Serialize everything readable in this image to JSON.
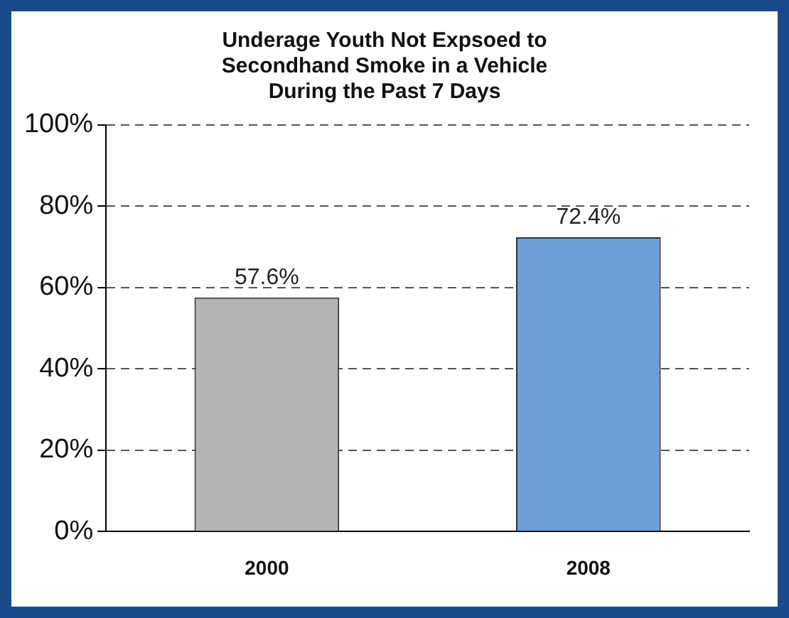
{
  "chart_data": {
    "type": "bar",
    "title": "Underage Youth Not Expsoed to Secondhand Smoke in a Vehicle During the Past 7 Days",
    "categories": [
      "2000",
      "2008"
    ],
    "values": [
      57.6,
      72.4
    ],
    "colors": [
      "#b4b4b4",
      "#6c9fd6"
    ],
    "value_labels": [
      "57.6%",
      "72.4%"
    ],
    "ylim": [
      0,
      100
    ],
    "yticks": [
      {
        "value": 0,
        "label": "0%"
      },
      {
        "value": 20,
        "label": "20%"
      },
      {
        "value": 40,
        "label": "40%"
      },
      {
        "value": 60,
        "label": "60%"
      },
      {
        "value": 80,
        "label": "80%"
      },
      {
        "value": 100,
        "label": "100%"
      }
    ],
    "grid": "y"
  }
}
